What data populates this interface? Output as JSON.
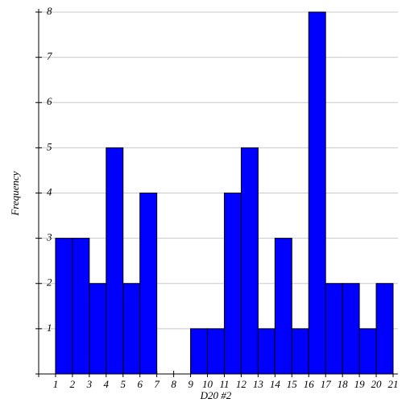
{
  "chart_data": {
    "type": "histogram",
    "xlabel": "D20 #2",
    "ylabel": "Frequency",
    "bins": [
      1,
      2,
      3,
      4,
      5,
      6,
      7,
      8,
      9,
      10,
      11,
      12,
      13,
      14,
      15,
      16,
      17,
      18,
      19,
      20,
      21
    ],
    "counts": [
      3,
      3,
      2,
      5,
      2,
      4,
      0,
      0,
      1,
      1,
      4,
      5,
      1,
      3,
      1,
      8,
      2,
      2,
      1,
      2
    ],
    "color": "#0000ff",
    "xlim": [
      0,
      21
    ],
    "ylim": [
      0,
      8
    ],
    "xticks": [
      1,
      2,
      3,
      4,
      5,
      6,
      7,
      8,
      9,
      10,
      11,
      12,
      13,
      14,
      15,
      16,
      17,
      18,
      19,
      20,
      21
    ],
    "yticks": [
      1,
      2,
      3,
      4,
      5,
      6,
      7,
      8
    ],
    "grid": true
  }
}
